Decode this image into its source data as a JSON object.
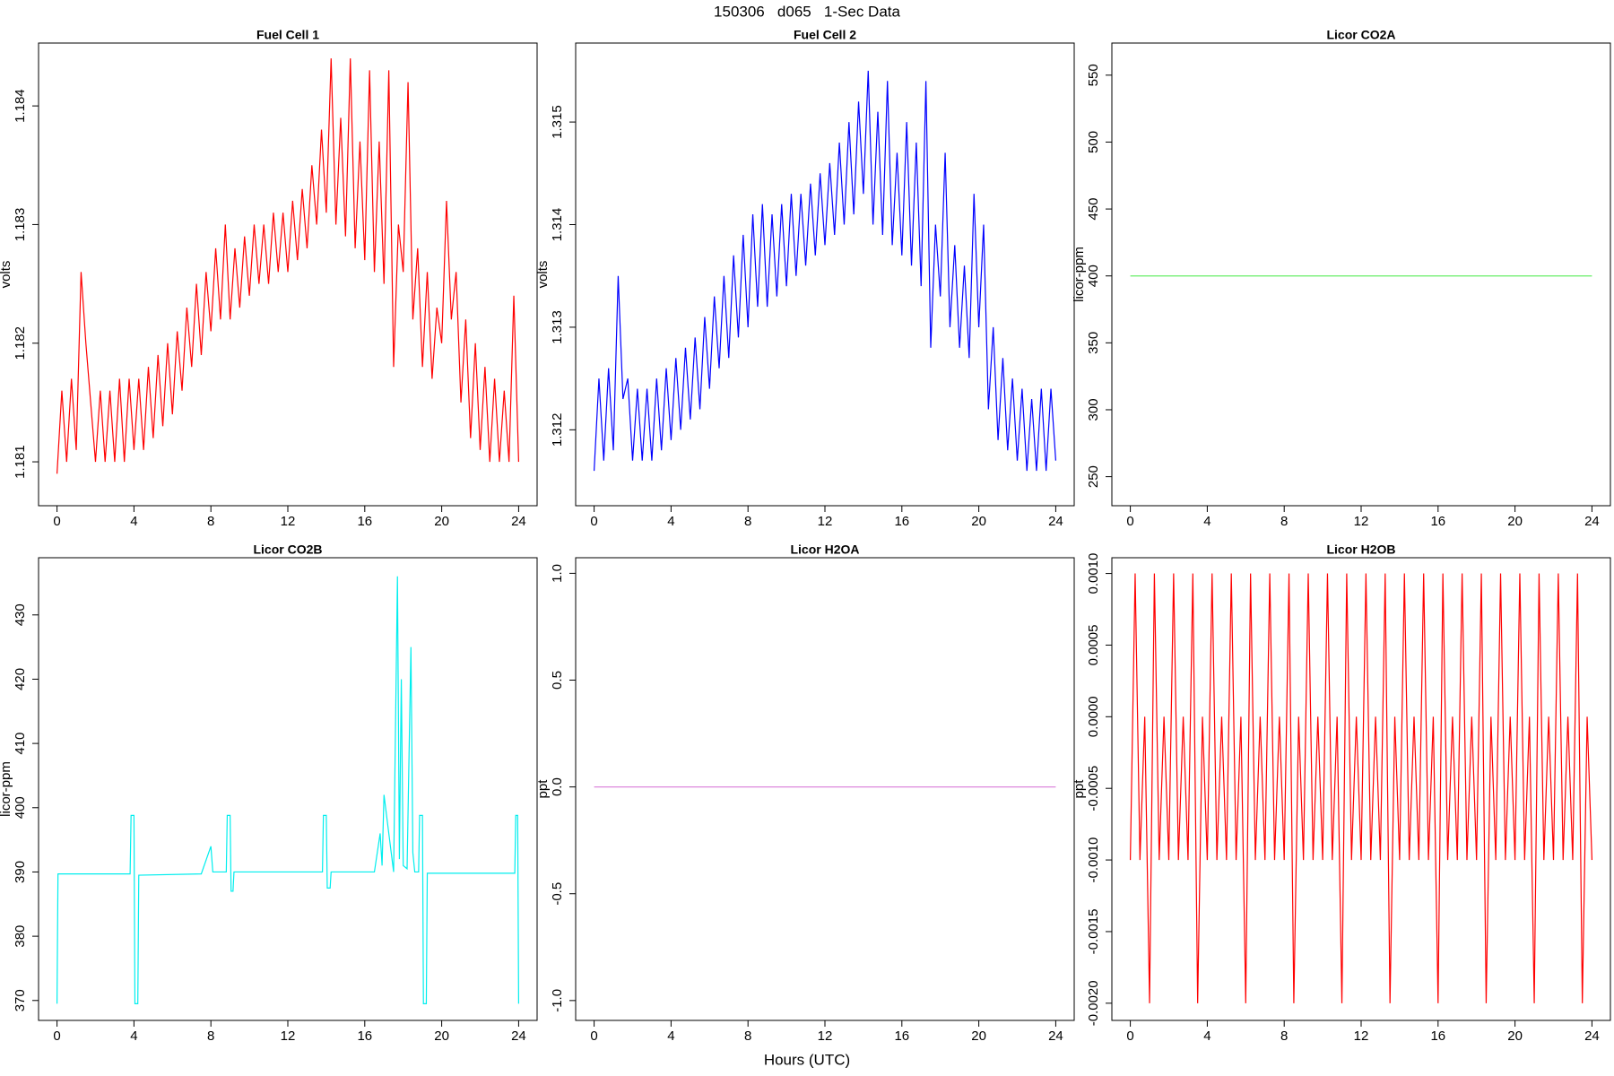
{
  "title": "150306   d065   1-Sec Data",
  "xlabel": "Hours (UTC)",
  "chart_data": [
    {
      "type": "line",
      "title": "Fuel Cell 1",
      "ylabel": "volts",
      "color": "#ff0000",
      "xlim": [
        -0.96,
        24.96
      ],
      "xticks": [
        0,
        4,
        8,
        12,
        16,
        20,
        24
      ],
      "ylim": [
        1.18063,
        1.18453
      ],
      "yticks": [
        1.181,
        1.182,
        1.183,
        1.184
      ],
      "x": [
        0,
        0.25,
        0.5,
        0.75,
        1,
        1.25,
        1.5,
        1.75,
        2,
        2.25,
        2.5,
        2.75,
        3,
        3.25,
        3.5,
        3.75,
        4,
        4.25,
        4.5,
        4.75,
        5,
        5.25,
        5.5,
        5.75,
        6,
        6.25,
        6.5,
        6.75,
        7,
        7.25,
        7.5,
        7.75,
        8,
        8.25,
        8.5,
        8.75,
        9,
        9.25,
        9.5,
        9.75,
        10,
        10.25,
        10.5,
        10.75,
        11,
        11.25,
        11.5,
        11.75,
        12,
        12.25,
        12.5,
        12.75,
        13,
        13.25,
        13.5,
        13.75,
        14,
        14.25,
        14.5,
        14.75,
        15,
        15.25,
        15.5,
        15.75,
        16,
        16.25,
        16.5,
        16.75,
        17,
        17.25,
        17.5,
        17.75,
        18,
        18.25,
        18.5,
        18.75,
        19,
        19.25,
        19.5,
        19.75,
        20,
        20.25,
        20.5,
        20.75,
        21,
        21.25,
        21.5,
        21.75,
        22,
        22.25,
        22.5,
        22.75,
        23,
        23.25,
        23.5,
        23.75,
        24
      ],
      "values": [
        1.1809,
        1.1816,
        1.181,
        1.1817,
        1.1811,
        1.1826,
        1.182,
        1.1815,
        1.181,
        1.1816,
        1.181,
        1.1816,
        1.181,
        1.1817,
        1.181,
        1.1817,
        1.1811,
        1.1817,
        1.1811,
        1.1818,
        1.1812,
        1.1819,
        1.1813,
        1.182,
        1.1814,
        1.1821,
        1.1816,
        1.1823,
        1.1818,
        1.1825,
        1.1819,
        1.1826,
        1.1821,
        1.1828,
        1.1822,
        1.183,
        1.1822,
        1.1828,
        1.1823,
        1.1829,
        1.1824,
        1.183,
        1.1825,
        1.183,
        1.1825,
        1.1831,
        1.1826,
        1.1831,
        1.1826,
        1.1832,
        1.1827,
        1.1833,
        1.1828,
        1.1835,
        1.183,
        1.1838,
        1.1831,
        1.1844,
        1.183,
        1.1839,
        1.1829,
        1.1844,
        1.1828,
        1.1837,
        1.1827,
        1.1843,
        1.1826,
        1.1837,
        1.1825,
        1.1843,
        1.1818,
        1.183,
        1.1826,
        1.1842,
        1.1822,
        1.1828,
        1.1818,
        1.1826,
        1.1817,
        1.1823,
        1.182,
        1.1832,
        1.1822,
        1.1826,
        1.1815,
        1.1822,
        1.1812,
        1.182,
        1.1811,
        1.1818,
        1.181,
        1.1817,
        1.181,
        1.1816,
        1.181,
        1.1824,
        1.181
      ]
    },
    {
      "type": "line",
      "title": "Fuel Cell 2",
      "ylabel": "volts",
      "color": "#0000ff",
      "xlim": [
        -0.96,
        24.96
      ],
      "xticks": [
        0,
        4,
        8,
        12,
        16,
        20,
        24
      ],
      "ylim": [
        1.31126,
        1.31577
      ],
      "yticks": [
        1.312,
        1.313,
        1.314,
        1.315
      ],
      "x": [
        0,
        0.25,
        0.5,
        0.75,
        1,
        1.25,
        1.5,
        1.75,
        2,
        2.25,
        2.5,
        2.75,
        3,
        3.25,
        3.5,
        3.75,
        4,
        4.25,
        4.5,
        4.75,
        5,
        5.25,
        5.5,
        5.75,
        6,
        6.25,
        6.5,
        6.75,
        7,
        7.25,
        7.5,
        7.75,
        8,
        8.25,
        8.5,
        8.75,
        9,
        9.25,
        9.5,
        9.75,
        10,
        10.25,
        10.5,
        10.75,
        11,
        11.25,
        11.5,
        11.75,
        12,
        12.25,
        12.5,
        12.75,
        13,
        13.25,
        13.5,
        13.75,
        14,
        14.25,
        14.5,
        14.75,
        15,
        15.25,
        15.5,
        15.75,
        16,
        16.25,
        16.5,
        16.75,
        17,
        17.25,
        17.5,
        17.75,
        18,
        18.25,
        18.5,
        18.75,
        19,
        19.25,
        19.5,
        19.75,
        20,
        20.25,
        20.5,
        20.75,
        21,
        21.25,
        21.5,
        21.75,
        22,
        22.25,
        22.5,
        22.75,
        23,
        23.25,
        23.5,
        23.75,
        24
      ],
      "values": [
        1.3116,
        1.3125,
        1.3117,
        1.3126,
        1.3118,
        1.3135,
        1.3123,
        1.3125,
        1.3117,
        1.3124,
        1.3117,
        1.3124,
        1.3117,
        1.3125,
        1.3118,
        1.3126,
        1.3119,
        1.3127,
        1.312,
        1.3128,
        1.3121,
        1.3129,
        1.3122,
        1.3131,
        1.3124,
        1.3133,
        1.3126,
        1.3135,
        1.3127,
        1.3137,
        1.3129,
        1.3139,
        1.313,
        1.3141,
        1.3132,
        1.3142,
        1.3132,
        1.3141,
        1.3133,
        1.3142,
        1.3134,
        1.3143,
        1.3135,
        1.3143,
        1.3136,
        1.3144,
        1.3137,
        1.3145,
        1.3138,
        1.3146,
        1.3139,
        1.3148,
        1.314,
        1.315,
        1.3141,
        1.3152,
        1.3143,
        1.3155,
        1.314,
        1.3151,
        1.3139,
        1.3154,
        1.3138,
        1.3147,
        1.3137,
        1.315,
        1.3136,
        1.3148,
        1.3134,
        1.3154,
        1.3128,
        1.314,
        1.3133,
        1.3147,
        1.313,
        1.3138,
        1.3128,
        1.3136,
        1.3127,
        1.3143,
        1.313,
        1.314,
        1.3122,
        1.313,
        1.3119,
        1.3127,
        1.3118,
        1.3125,
        1.3117,
        1.3124,
        1.3116,
        1.3123,
        1.3116,
        1.3124,
        1.3116,
        1.3124,
        1.3117
      ]
    },
    {
      "type": "line",
      "title": "Licor CO2A",
      "ylabel": "licor-ppm",
      "color": "#66ee66",
      "xlim": [
        -0.96,
        24.96
      ],
      "xticks": [
        0,
        4,
        8,
        12,
        16,
        20,
        24
      ],
      "ylim": [
        228.3,
        574
      ],
      "yticks": [
        250,
        300,
        350,
        400,
        450,
        500,
        550
      ],
      "x": [
        0,
        24
      ],
      "values": [
        400,
        400
      ]
    },
    {
      "type": "line",
      "title": "Licor CO2B",
      "ylabel": "licor-ppm",
      "color": "#00eeee",
      "xlim": [
        -0.96,
        24.96
      ],
      "xticks": [
        0,
        4,
        8,
        12,
        16,
        20,
        24
      ],
      "ylim": [
        366.9,
        438.9
      ],
      "yticks": [
        370,
        380,
        390,
        400,
        410,
        420,
        430
      ],
      "x": [
        0,
        0.05,
        3.8,
        3.85,
        4.0,
        4.05,
        4.2,
        4.25,
        7.5,
        8.0,
        8.1,
        8.2,
        8.8,
        8.85,
        9.0,
        9.05,
        9.15,
        9.2,
        10,
        13.8,
        13.85,
        14.0,
        14.05,
        14.2,
        14.25,
        16.5,
        16.8,
        16.9,
        17.0,
        17.5,
        17.7,
        17.8,
        17.9,
        18.0,
        18.2,
        18.4,
        18.5,
        18.6,
        18.8,
        18.85,
        19.0,
        19.05,
        19.2,
        19.25,
        20,
        23.8,
        23.85,
        23.95,
        24.0
      ],
      "values": [
        369.5,
        389.7,
        389.7,
        398.8,
        398.8,
        369.5,
        369.5,
        389.5,
        389.7,
        394,
        390,
        390,
        390,
        398.8,
        398.8,
        387,
        387,
        390,
        390,
        390,
        398.8,
        398.8,
        387.5,
        387.5,
        390,
        390,
        396,
        391,
        402,
        390,
        436,
        392,
        420,
        391,
        390.5,
        425,
        393,
        390,
        390,
        398.8,
        398.8,
        369.5,
        369.5,
        389.8,
        389.8,
        389.8,
        398.8,
        398.8,
        369.5
      ]
    },
    {
      "type": "line",
      "title": "Licor H2OA",
      "ylabel": "ppt",
      "color": "#dd88dd",
      "xlim": [
        -0.96,
        24.96
      ],
      "xticks": [
        0,
        4,
        8,
        12,
        16,
        20,
        24
      ],
      "ylim": [
        -1.093,
        1.073
      ],
      "yticks": [
        {
          "value": -1,
          "label": "-1.0"
        },
        {
          "value": -0.5,
          "label": "-0.5"
        },
        {
          "value": 0,
          "label": "0.0"
        },
        {
          "value": 0.5,
          "label": "0.5"
        },
        {
          "value": 1,
          "label": "1.0"
        }
      ],
      "x": [
        0,
        24
      ],
      "values": [
        0,
        0
      ]
    },
    {
      "type": "line",
      "title": "Licor H2OB",
      "ylabel": "ppt",
      "color": "#ff0000",
      "xlim": [
        -0.96,
        24.96
      ],
      "xticks": [
        0,
        4,
        8,
        12,
        16,
        20,
        24
      ],
      "ylim": [
        -0.00212,
        0.00111
      ],
      "yticks": [
        {
          "value": -0.002,
          "label": "-0.0020"
        },
        {
          "value": -0.0015,
          "label": "-0.0015"
        },
        {
          "value": -0.001,
          "label": "-0.0010"
        },
        {
          "value": -0.0005,
          "label": "-0.0005"
        },
        {
          "value": 0,
          "label": "0.0000"
        },
        {
          "value": 0.0005,
          "label": "0.0005"
        },
        {
          "value": 0.001,
          "label": "0.0010"
        }
      ],
      "x": [
        0,
        0.25,
        0.5,
        0.75,
        1,
        1.25,
        1.5,
        1.75,
        2,
        2.25,
        2.5,
        2.75,
        3,
        3.25,
        3.5,
        3.75,
        4,
        4.25,
        4.5,
        4.75,
        5,
        5.25,
        5.5,
        5.75,
        6,
        6.25,
        6.5,
        6.75,
        7,
        7.25,
        7.5,
        7.75,
        8,
        8.25,
        8.5,
        8.75,
        9,
        9.25,
        9.5,
        9.75,
        10,
        10.25,
        10.5,
        10.75,
        11,
        11.25,
        11.5,
        11.75,
        12,
        12.25,
        12.5,
        12.75,
        13,
        13.25,
        13.5,
        13.75,
        14,
        14.25,
        14.5,
        14.75,
        15,
        15.25,
        15.5,
        15.75,
        16,
        16.25,
        16.5,
        16.75,
        17,
        17.25,
        17.5,
        17.75,
        18,
        18.25,
        18.5,
        18.75,
        19,
        19.25,
        19.5,
        19.75,
        20,
        20.25,
        20.5,
        20.75,
        21,
        21.25,
        21.5,
        21.75,
        22,
        22.25,
        22.5,
        22.75,
        23,
        23.25,
        23.5,
        23.75,
        24
      ],
      "values": [
        -0.001,
        0.001,
        -0.001,
        0,
        -0.002,
        0.001,
        -0.001,
        0,
        -0.001,
        0.001,
        -0.001,
        0,
        -0.001,
        0.001,
        -0.002,
        0,
        -0.001,
        0.001,
        -0.001,
        0,
        -0.001,
        0.001,
        -0.001,
        0,
        -0.002,
        0.001,
        -0.001,
        0,
        -0.001,
        0.001,
        -0.001,
        0,
        -0.001,
        0.001,
        -0.002,
        0,
        -0.001,
        0.001,
        -0.001,
        0,
        -0.001,
        0.001,
        -0.001,
        0,
        -0.002,
        0.001,
        -0.001,
        0,
        -0.001,
        0.001,
        -0.001,
        0,
        -0.001,
        0.001,
        -0.002,
        0,
        -0.001,
        0.001,
        -0.001,
        0,
        -0.001,
        0.001,
        -0.001,
        0,
        -0.002,
        0.001,
        -0.001,
        0,
        -0.001,
        0.001,
        -0.001,
        0,
        -0.001,
        0.001,
        -0.002,
        0,
        -0.001,
        0.001,
        -0.001,
        0,
        -0.001,
        0.001,
        -0.001,
        0,
        -0.002,
        0.001,
        -0.001,
        0,
        -0.001,
        0.001,
        -0.001,
        0,
        -0.001,
        0.001,
        -0.002,
        0,
        -0.001
      ]
    }
  ]
}
